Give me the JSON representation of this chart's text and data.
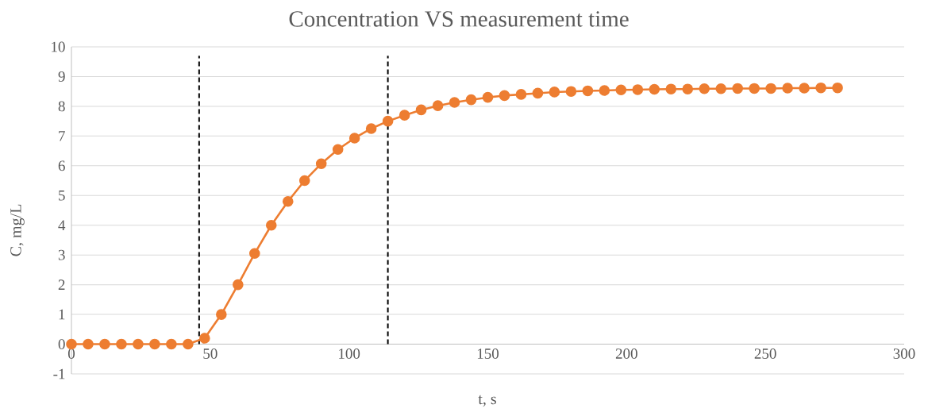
{
  "chart_data": {
    "type": "line",
    "title": "Concentration VS measurement time",
    "xlabel": "t, s",
    "ylabel": "C, mg/L",
    "x": [
      0,
      6,
      12,
      18,
      24,
      30,
      36,
      42,
      48,
      54,
      60,
      66,
      72,
      78,
      84,
      90,
      96,
      102,
      108,
      114,
      120,
      126,
      132,
      138,
      144,
      150,
      156,
      162,
      168,
      174,
      180,
      186,
      192,
      198,
      204,
      210,
      216,
      222,
      228,
      234,
      240,
      246,
      252,
      258,
      264,
      270,
      276
    ],
    "series": [
      {
        "color": "#ed7d31",
        "values": [
          0,
          0,
          0,
          0,
          0,
          0,
          0,
          0,
          0.2,
          1.0,
          2.0,
          3.05,
          4.0,
          4.8,
          5.5,
          6.07,
          6.55,
          6.93,
          7.25,
          7.5,
          7.7,
          7.88,
          8.02,
          8.13,
          8.22,
          8.3,
          8.36,
          8.4,
          8.44,
          8.48,
          8.5,
          8.52,
          8.53,
          8.55,
          8.56,
          8.57,
          8.58,
          8.58,
          8.59,
          8.59,
          8.6,
          8.6,
          8.6,
          8.61,
          8.61,
          8.62,
          8.62
        ]
      }
    ],
    "xlim": [
      0,
      300
    ],
    "xticks": [
      0,
      50,
      100,
      150,
      200,
      250,
      300
    ],
    "ylim": [
      -1,
      10
    ],
    "yticks": [
      -1,
      0,
      1,
      2,
      3,
      4,
      5,
      6,
      7,
      8,
      9,
      10
    ],
    "grid": "y",
    "marker": "circle",
    "line_style": "solid",
    "ref_lines": [
      {
        "axis": "x",
        "value": 46,
        "color": "#000000",
        "line_style": "dashed"
      },
      {
        "axis": "x",
        "value": 114,
        "color": "#000000",
        "line_style": "dashed"
      }
    ]
  }
}
